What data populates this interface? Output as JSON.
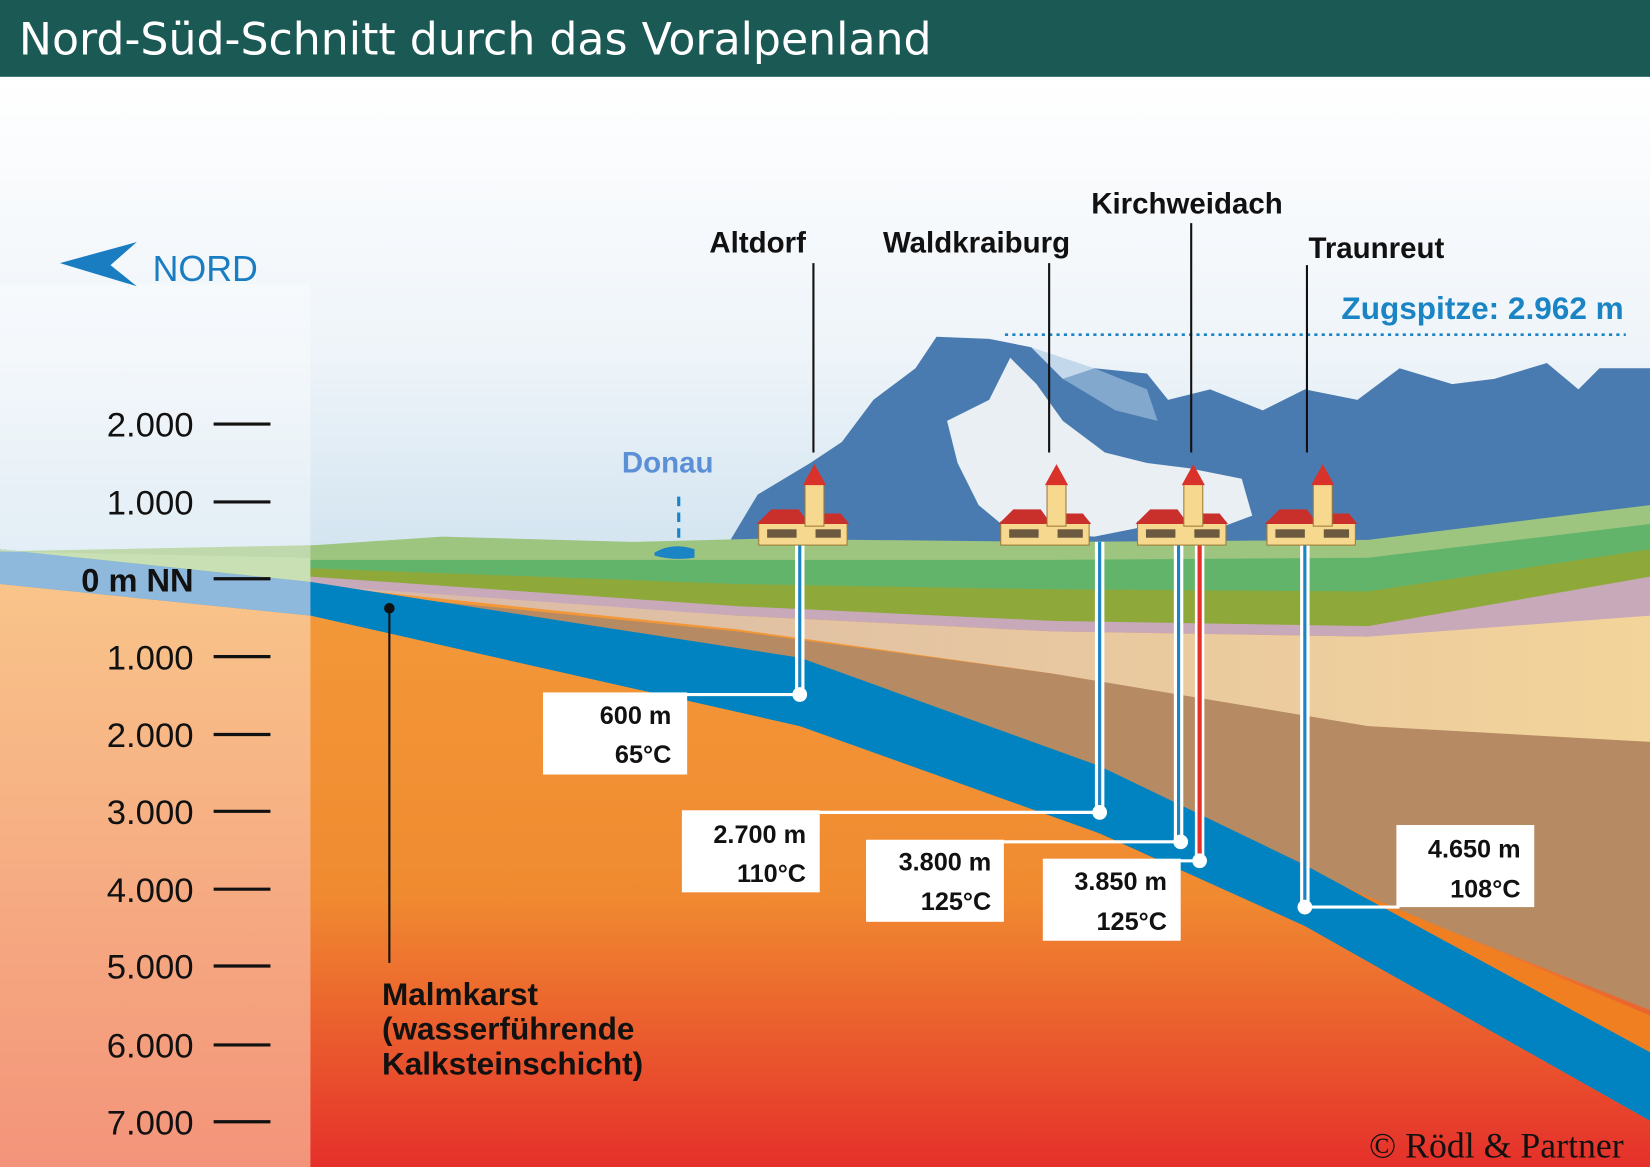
{
  "title": "Nord-Süd-Schnitt durch das Voralpenland",
  "compass": {
    "label": "NORD",
    "icon": "north-arrow-icon",
    "color": "#1a7dc2"
  },
  "scale": {
    "ticks": [
      "2.000",
      "1.000",
      "0 m NN",
      "1.000",
      "2.000",
      "3.000",
      "4.000",
      "5.000",
      "6.000",
      "7.000"
    ]
  },
  "river": {
    "label": "Donau",
    "color": "#5b8fd6"
  },
  "zugspitze": {
    "label": "Zugspitze: 2.962 m",
    "color": "#1a84c4"
  },
  "towns": [
    {
      "name": "Altdorf"
    },
    {
      "name": "Waldkraiburg"
    },
    {
      "name": "Kirchweidach"
    },
    {
      "name": "Traunreut"
    }
  ],
  "wells": [
    {
      "depth": "600 m",
      "temp": "65°C"
    },
    {
      "depth": "2.700 m",
      "temp": "110°C"
    },
    {
      "depth": "3.800 m",
      "temp": "125°C"
    },
    {
      "depth": "3.850 m",
      "temp": "125°C"
    },
    {
      "depth": "4.650 m",
      "temp": "108°C"
    }
  ],
  "aquifer": {
    "line1": "Malmkarst",
    "line2": "(wasserführende",
    "line3": "Kalksteinschicht)",
    "color": "#0083c0"
  },
  "copyright": "© Rödl & Partner",
  "colors": {
    "header": "#1b5955",
    "mountains": "#4a7bb0",
    "hot": "#e8332b",
    "warm": "#f39a3a"
  }
}
